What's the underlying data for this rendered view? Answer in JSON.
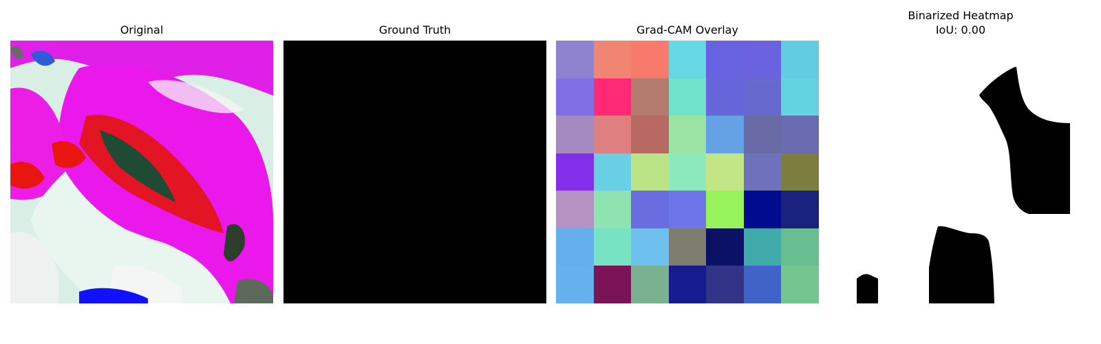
{
  "panels": {
    "original": {
      "title": "Original"
    },
    "ground_truth": {
      "title": "Ground Truth"
    },
    "overlay": {
      "title": "Grad-CAM Overlay",
      "cells": [
        [
          "#8f83d0",
          "#ef8572",
          "#f87a6d",
          "#66d8e4",
          "#6762e0",
          "#6a62de",
          "#62cde2"
        ],
        [
          "#7f6fe5",
          "#ff2a73",
          "#b27b6e",
          "#71e3cb",
          "#6666da",
          "#6769cf",
          "#63d3e0"
        ],
        [
          "#a58abf",
          "#df7f7f",
          "#b86a62",
          "#9be3a2",
          "#64a1e5",
          "#696aa6",
          "#6a6bb1"
        ],
        [
          "#832eea",
          "#69cfe4",
          "#b9e384",
          "#8ce8bd",
          "#c2e585",
          "#6f72ba",
          "#7b7e3f"
        ],
        [
          "#b493c3",
          "#8ee3b1",
          "#6a6de0",
          "#6d75e9",
          "#97f35c",
          "#000b8f",
          "#1a2280"
        ],
        [
          "#65b0ec",
          "#77e3c3",
          "#6ec0ef",
          "#7c7d6e",
          "#0b1266",
          "#41abab",
          "#68be90"
        ],
        [
          "#66b0ee",
          "#7b1358",
          "#7ab190",
          "#161c8e",
          "#323487",
          "#4063c8",
          "#74c590"
        ]
      ]
    },
    "binarized": {
      "title": "Binarized Heatmap\nIoU: 0.00"
    }
  },
  "colors": {
    "magenta": "#ff00ff",
    "red": "#e8160f",
    "mint": "#d6f2e6",
    "green_dark": "#1f4a33"
  }
}
